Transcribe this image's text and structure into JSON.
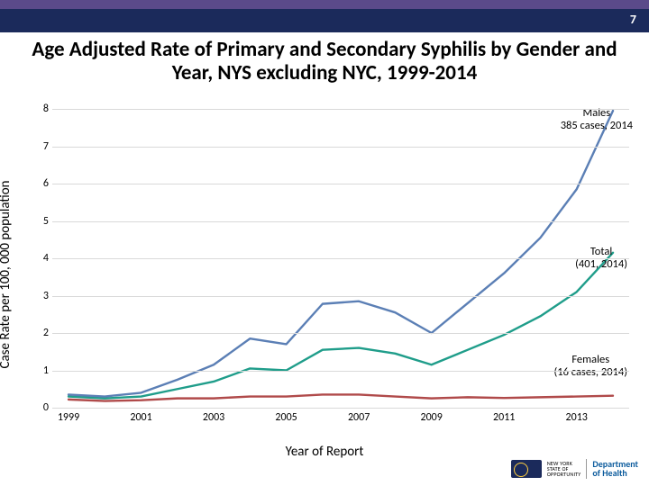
{
  "page_number": "7",
  "title": "Age Adjusted Rate of Primary and Secondary Syphilis by Gender and Year, NYS excluding NYC, 1999-2014",
  "chart": {
    "type": "line",
    "ylabel": "Case Rate per 100, 000 population",
    "xlabel": "Year of Report",
    "ylim": [
      0,
      8
    ],
    "ytick_step": 1,
    "x_categories": [
      "1999",
      "2000",
      "2001",
      "2002",
      "2003",
      "2004",
      "2005",
      "2006",
      "2007",
      "2008",
      "2009",
      "2010",
      "2011",
      "2012",
      "2013",
      "2014"
    ],
    "x_tick_every": 2,
    "grid_color": "#d9d9d9",
    "background_color": "#ffffff",
    "line_width": 2.4,
    "series": {
      "males": {
        "color": "#5b7fb5",
        "values": [
          0.35,
          0.3,
          0.4,
          0.75,
          1.15,
          1.85,
          1.7,
          2.78,
          2.85,
          2.55,
          2.0,
          2.8,
          3.6,
          4.55,
          5.85,
          7.95
        ]
      },
      "total": {
        "color": "#1f9d8a",
        "values": [
          0.3,
          0.25,
          0.3,
          0.5,
          0.7,
          1.05,
          1.0,
          1.55,
          1.6,
          1.45,
          1.15,
          1.55,
          1.95,
          2.45,
          3.1,
          4.15
        ]
      },
      "females": {
        "color": "#b04a4a",
        "values": [
          0.22,
          0.18,
          0.2,
          0.25,
          0.25,
          0.3,
          0.3,
          0.35,
          0.35,
          0.3,
          0.25,
          0.28,
          0.26,
          0.28,
          0.3,
          0.32
        ]
      }
    },
    "annotations": {
      "males": {
        "line1": "Males",
        "line2": "385 cases, 2014"
      },
      "total": {
        "line1": "Total",
        "line2": "(401, 2014)"
      },
      "females": {
        "line1": "Females",
        "line2": "(16 cases, 2014)"
      }
    }
  },
  "logo": {
    "state": "NEW YORK STATE OF OPPORTUNITY",
    "dept": "Department of Health"
  }
}
